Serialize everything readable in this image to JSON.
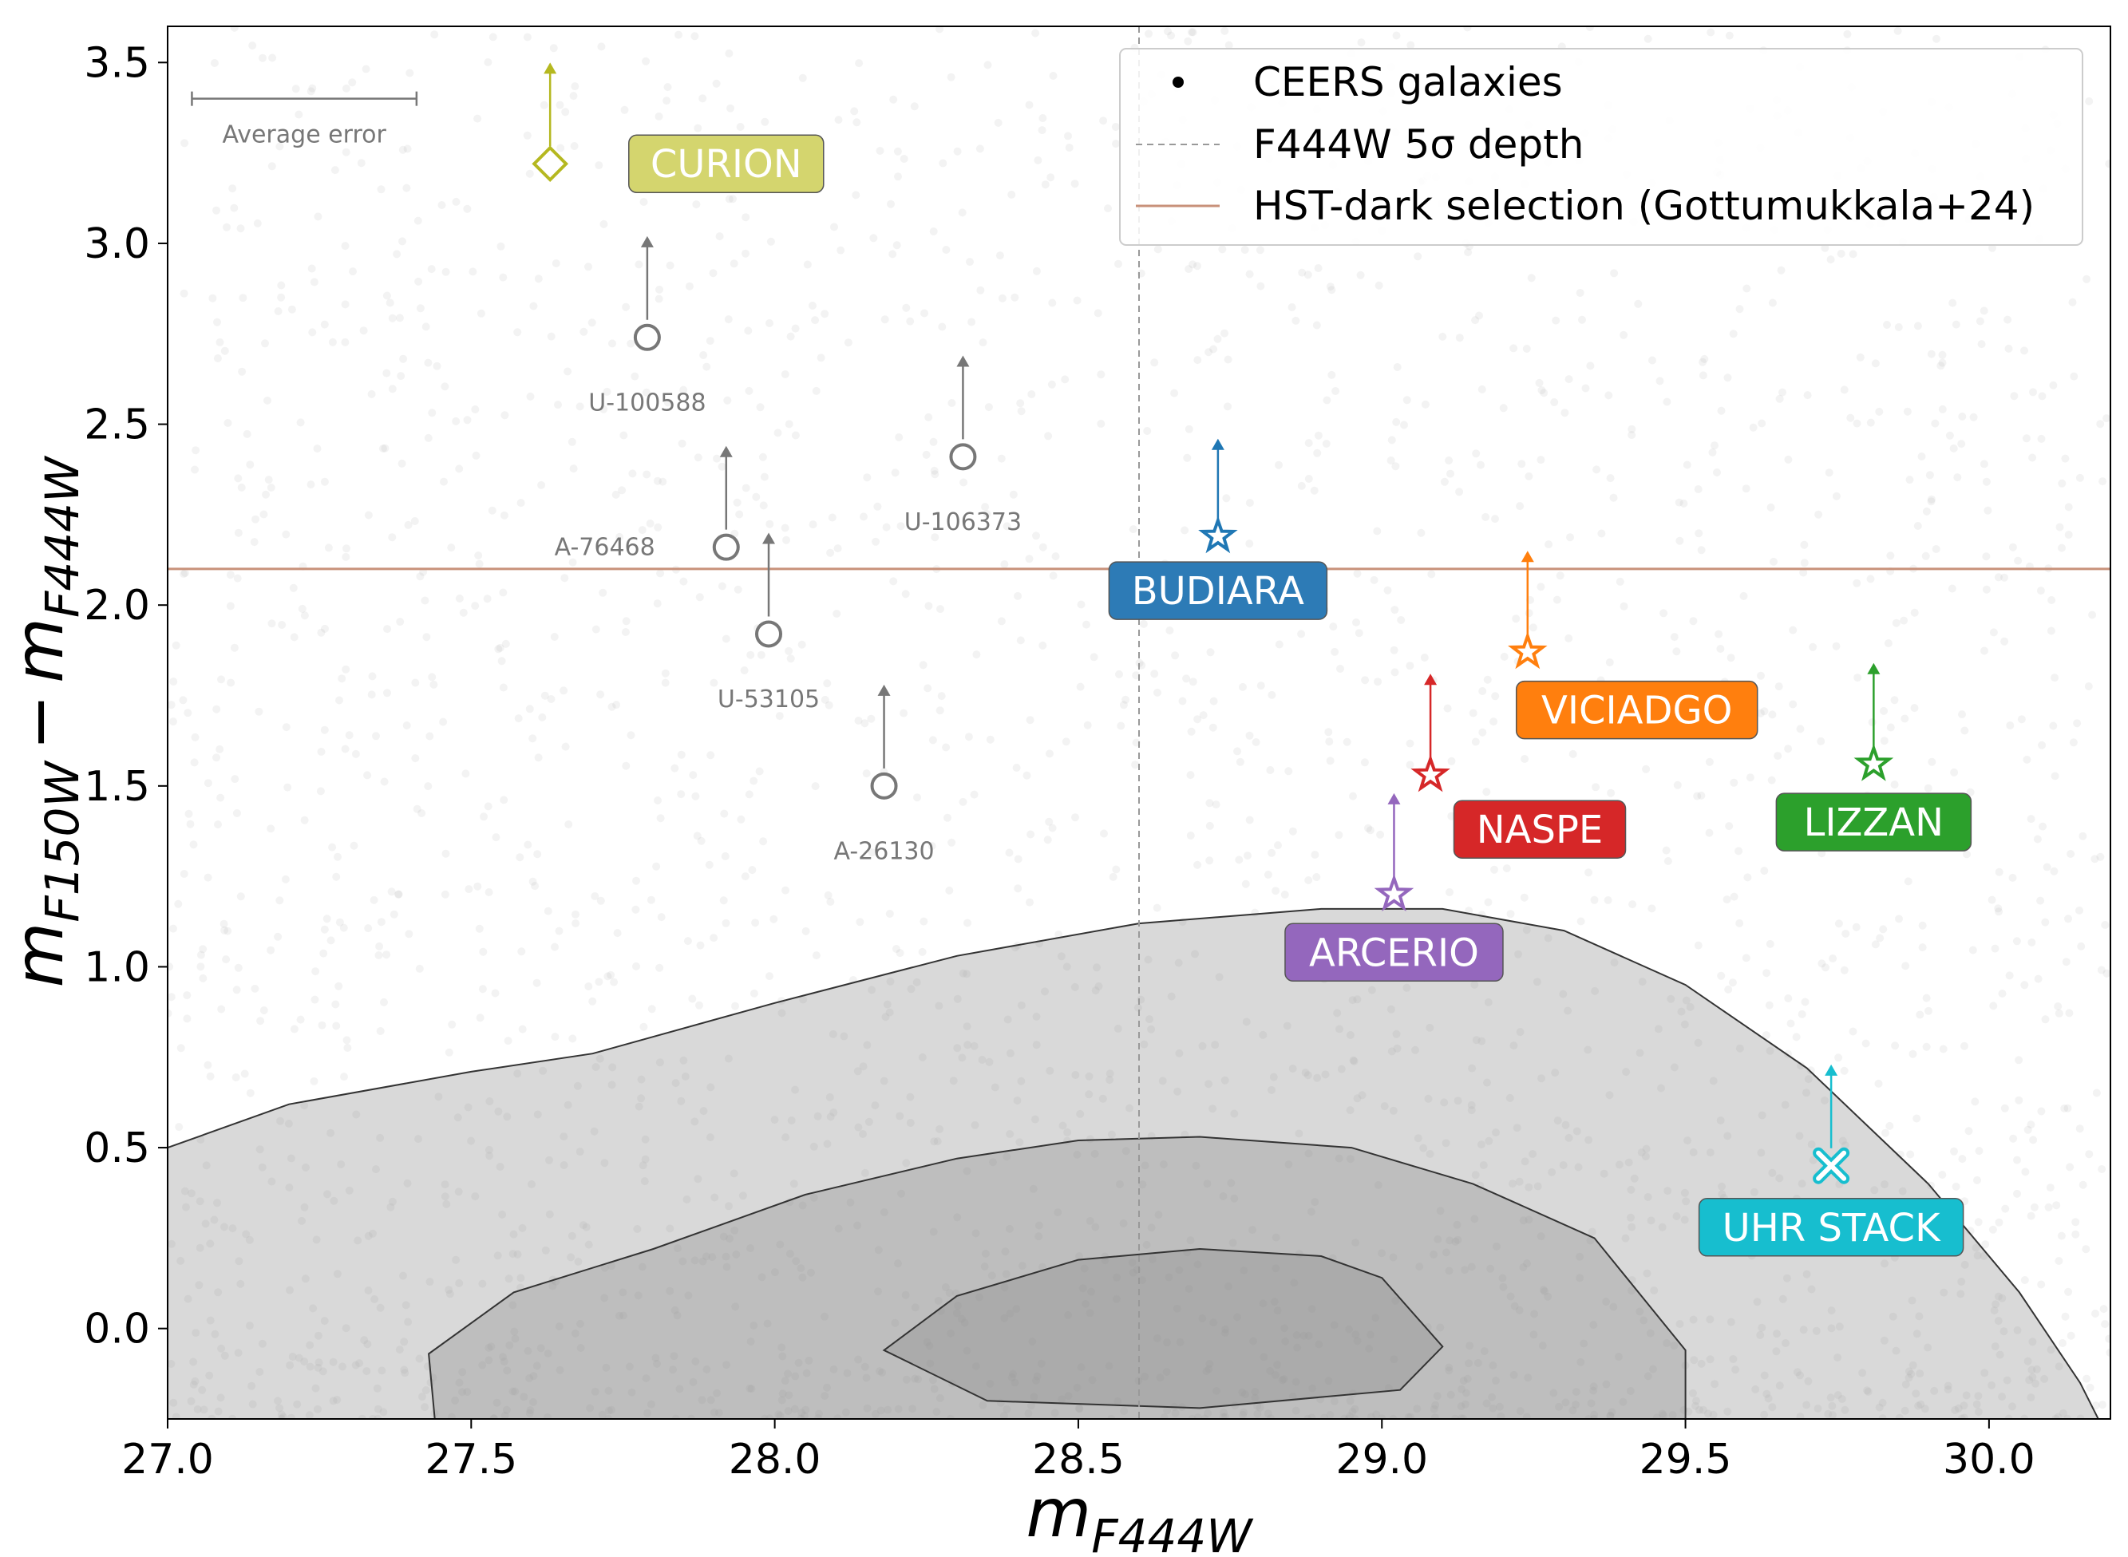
{
  "chart_data": {
    "type": "scatter",
    "xlabel": {
      "base": "m",
      "sub": "F444W"
    },
    "ylabel": {
      "base1": "m",
      "sub1": "F150W",
      "minus": "−",
      "base2": "m",
      "sub2": "F444W"
    },
    "xlim": [
      27.0,
      30.2
    ],
    "ylim": [
      -0.25,
      3.6
    ],
    "x_ticks": [
      "27.0",
      "27.5",
      "28.0",
      "28.5",
      "29.0",
      "29.5",
      "30.0"
    ],
    "y_ticks": [
      "0.0",
      "0.5",
      "1.0",
      "1.5",
      "2.0",
      "2.5",
      "3.0",
      "3.5"
    ],
    "depth_line_x": 28.6,
    "selection_line_y": 2.1,
    "average_error": {
      "label": "Average error",
      "x_start": 27.04,
      "x_end": 27.41,
      "y": 3.4
    },
    "legend": {
      "position": "top-right",
      "entries": [
        {
          "label": "CEERS galaxies",
          "marker": "dot"
        },
        {
          "label": "F444W 5σ depth",
          "marker": "dashed-line"
        },
        {
          "label": "HST-dark selection (Gottumukkala+24)",
          "marker": "solid-line"
        }
      ]
    },
    "named_sources": [
      {
        "name": "CURION",
        "x": 27.63,
        "y": 3.22,
        "arrow_to": 3.5,
        "marker": "diamond",
        "color": "#b5b820",
        "label_bg": "#d4d56e",
        "label_x": 27.92,
        "label_y": 3.22
      },
      {
        "name": "BUDIARA",
        "x": 28.73,
        "y": 2.19,
        "arrow_to": 2.46,
        "marker": "star",
        "color": "#1f77b4",
        "label_bg": "#2d7bb6",
        "label_x": 28.73,
        "label_y": 2.04
      },
      {
        "name": "VICIADGO",
        "x": 29.24,
        "y": 1.87,
        "arrow_to": 2.15,
        "marker": "star",
        "color": "#ff7f0e",
        "label_bg": "#ff7f0e",
        "label_x": 29.42,
        "label_y": 1.71
      },
      {
        "name": "NASPE",
        "x": 29.08,
        "y": 1.53,
        "arrow_to": 1.81,
        "marker": "star",
        "color": "#d62728",
        "label_bg": "#d62728",
        "label_x": 29.26,
        "label_y": 1.38
      },
      {
        "name": "LIZZAN",
        "x": 29.81,
        "y": 1.56,
        "arrow_to": 1.84,
        "marker": "star",
        "color": "#2ca02c",
        "label_bg": "#2ca02c",
        "label_x": 29.81,
        "label_y": 1.4
      },
      {
        "name": "ARCERIO",
        "x": 29.02,
        "y": 1.2,
        "arrow_to": 1.48,
        "marker": "star",
        "color": "#9467bd",
        "label_bg": "#9467bd",
        "label_x": 29.02,
        "label_y": 1.04
      },
      {
        "name": "UHR STACK",
        "x": 29.74,
        "y": 0.45,
        "arrow_to": 0.73,
        "marker": "x",
        "color": "#17becf",
        "label_bg": "#17becf",
        "label_x": 29.74,
        "label_y": 0.28
      }
    ],
    "grey_sources": [
      {
        "name": "U-100588",
        "x": 27.79,
        "y": 2.74,
        "arrow_to": 3.02,
        "label_x": 27.79,
        "label_y": 2.56
      },
      {
        "name": "U-106373",
        "x": 28.31,
        "y": 2.41,
        "arrow_to": 2.69,
        "label_x": 28.31,
        "label_y": 2.23
      },
      {
        "name": "A-76468",
        "x": 27.92,
        "y": 2.16,
        "arrow_to": 2.44,
        "label_x": 27.72,
        "label_y": 2.16
      },
      {
        "name": "U-53105",
        "x": 27.99,
        "y": 1.92,
        "arrow_to": 2.2,
        "label_x": 27.99,
        "label_y": 1.74
      },
      {
        "name": "A-26130",
        "x": 28.18,
        "y": 1.5,
        "arrow_to": 1.78,
        "label_x": 28.18,
        "label_y": 1.32
      }
    ],
    "contours": [
      {
        "level": "outer",
        "points": [
          [
            27.0,
            0.5
          ],
          [
            27.2,
            0.62
          ],
          [
            27.5,
            0.71
          ],
          [
            27.7,
            0.76
          ],
          [
            28.0,
            0.9
          ],
          [
            28.3,
            1.03
          ],
          [
            28.6,
            1.12
          ],
          [
            28.9,
            1.16
          ],
          [
            29.1,
            1.16
          ],
          [
            29.3,
            1.1
          ],
          [
            29.5,
            0.95
          ],
          [
            29.7,
            0.72
          ],
          [
            29.9,
            0.4
          ],
          [
            30.05,
            0.1
          ],
          [
            30.15,
            -0.15
          ],
          [
            30.18,
            -0.25
          ]
        ]
      },
      {
        "level": "middle",
        "points": [
          [
            27.44,
            -0.25
          ],
          [
            27.43,
            -0.07
          ],
          [
            27.57,
            0.1
          ],
          [
            27.8,
            0.22
          ],
          [
            28.05,
            0.37
          ],
          [
            28.3,
            0.47
          ],
          [
            28.5,
            0.52
          ],
          [
            28.7,
            0.53
          ],
          [
            28.95,
            0.5
          ],
          [
            29.15,
            0.4
          ],
          [
            29.35,
            0.25
          ],
          [
            29.5,
            -0.06
          ],
          [
            29.5,
            -0.25
          ]
        ]
      },
      {
        "level": "inner",
        "points": [
          [
            28.18,
            -0.06
          ],
          [
            28.3,
            0.09
          ],
          [
            28.5,
            0.19
          ],
          [
            28.7,
            0.22
          ],
          [
            28.9,
            0.2
          ],
          [
            29.0,
            0.14
          ],
          [
            29.1,
            -0.05
          ],
          [
            29.03,
            -0.17
          ],
          [
            28.7,
            -0.22
          ],
          [
            28.35,
            -0.2
          ]
        ]
      }
    ]
  }
}
